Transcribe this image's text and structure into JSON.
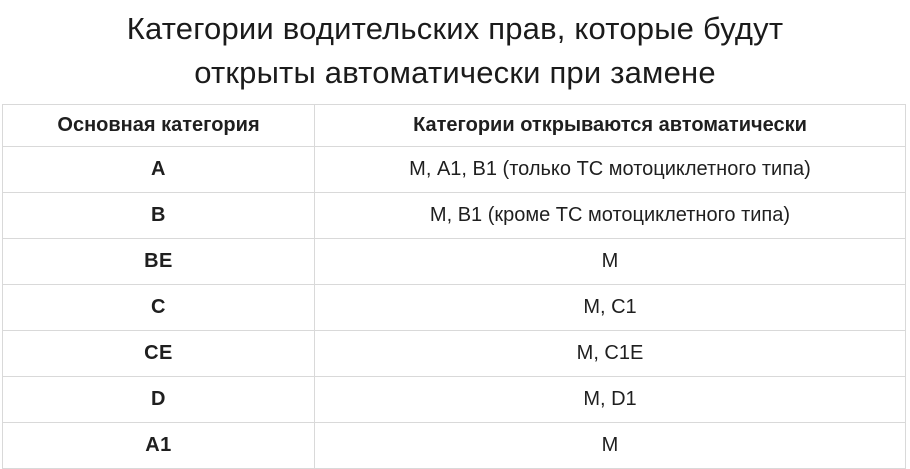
{
  "title": {
    "lines": [
      "Категории водительских прав, которые будут",
      "открыты автоматически при замене"
    ]
  },
  "table": {
    "headers": [
      "Основная категория",
      "Категории открываются автоматически"
    ],
    "rows": [
      {
        "category": "A",
        "auto": "М, А1, В1 (только ТС мотоциклетного типа)"
      },
      {
        "category": "B",
        "auto": "М, В1 (кроме ТС мотоциклетного типа)"
      },
      {
        "category": "BE",
        "auto": "М"
      },
      {
        "category": "C",
        "auto": "М, С1"
      },
      {
        "category": "CE",
        "auto": "М, С1Е"
      },
      {
        "category": "D",
        "auto": "М, D1"
      },
      {
        "category": "A1",
        "auto": "М"
      }
    ]
  },
  "chart_data": {
    "type": "table",
    "title": "Категории водительских прав, которые будут открыты автоматически при замене",
    "columns": [
      "Основная категория",
      "Категории открываются автоматически"
    ],
    "rows": [
      [
        "A",
        "М, А1, В1 (только ТС мотоциклетного типа)"
      ],
      [
        "B",
        "М, В1 (кроме ТС мотоциклетного типа)"
      ],
      [
        "BE",
        "М"
      ],
      [
        "C",
        "М, С1"
      ],
      [
        "CE",
        "М, С1Е"
      ],
      [
        "D",
        "М, D1"
      ],
      [
        "A1",
        "М"
      ]
    ],
    "layout": {
      "header_bold": true,
      "first_column_bold": true,
      "text_align": "center",
      "grid": true
    }
  },
  "colors": {
    "text": "#1c1c1c",
    "border": "#d9d9d9",
    "background": "#ffffff"
  }
}
